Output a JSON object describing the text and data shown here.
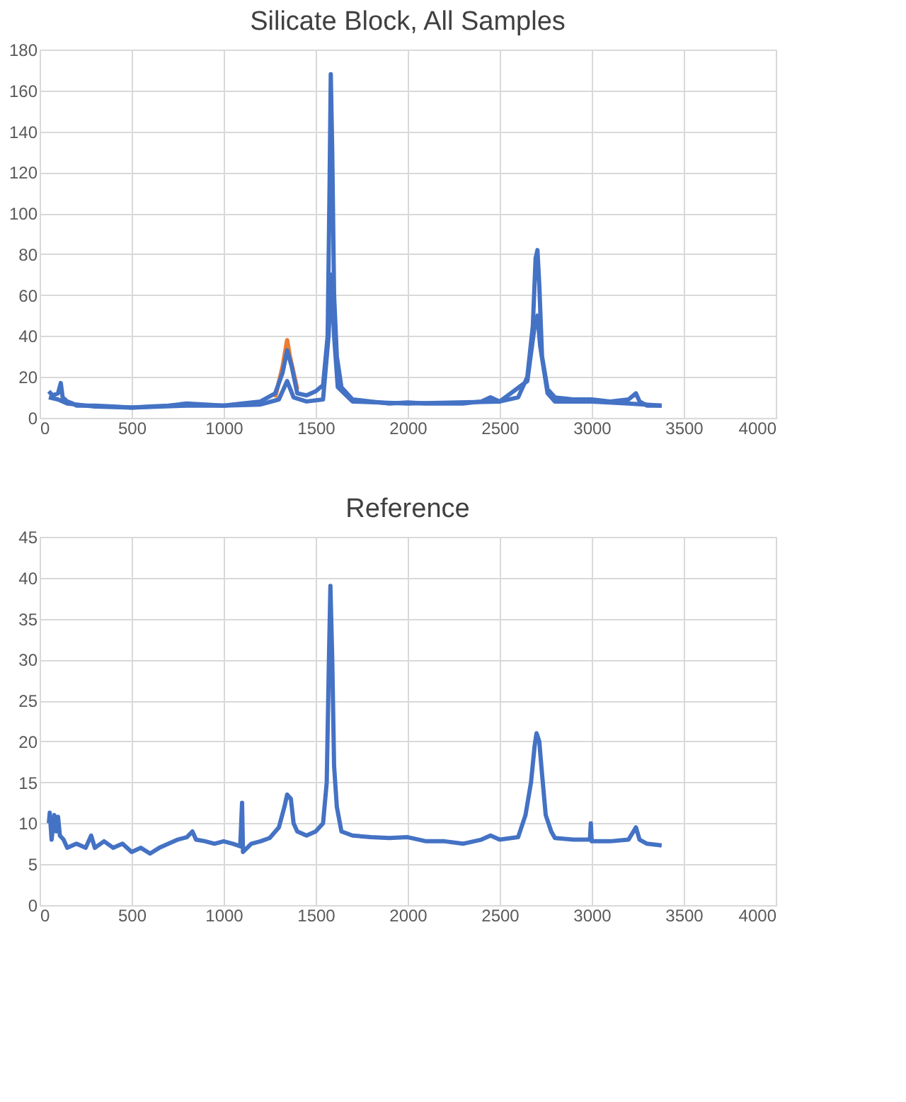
{
  "chart_data": [
    {
      "type": "line",
      "title": "Silicate Block, All Samples",
      "xlim": [
        0,
        4000
      ],
      "xticks": [
        0,
        500,
        1000,
        1500,
        2000,
        2500,
        3000,
        3500,
        4000
      ],
      "ylim": [
        0,
        180
      ],
      "yticks": [
        0,
        20,
        40,
        60,
        80,
        100,
        120,
        140,
        160,
        180
      ],
      "grid": true,
      "legend": false,
      "line_style": "solid",
      "marker": "none",
      "series": [
        {
          "color": "#ed7d31",
          "x": [
            1280,
            1320,
            1345,
            1360,
            1400
          ],
          "values": [
            10,
            25,
            38,
            30,
            14
          ]
        },
        {
          "color": "#4472c4",
          "x": [
            50,
            100,
            150,
            300,
            500,
            800,
            1000,
            1200,
            1300,
            1345,
            1380,
            1450,
            1540,
            1570,
            1585,
            1600,
            1620,
            1700,
            2000,
            2500,
            2650,
            2690,
            2705,
            2720,
            2760,
            2800,
            3000,
            3200,
            3380
          ],
          "values": [
            10,
            9,
            7,
            5.5,
            5,
            6,
            6,
            6.5,
            9,
            18,
            10,
            8,
            9,
            40,
            70,
            40,
            15,
            8,
            7,
            8,
            18,
            45,
            50,
            35,
            12,
            8,
            8,
            7,
            6
          ]
        },
        {
          "color": "#4472c4",
          "x": [
            50,
            70,
            100,
            115,
            125,
            150,
            180,
            200,
            300,
            400,
            500,
            600,
            700,
            800,
            900,
            1000,
            1100,
            1200,
            1280,
            1320,
            1345,
            1370,
            1400,
            1450,
            1500,
            1540,
            1565,
            1575,
            1582,
            1590,
            1600,
            1615,
            1640,
            1700,
            1800,
            1900,
            2000,
            2100,
            2200,
            2300,
            2400,
            2450,
            2500,
            2600,
            2650,
            2680,
            2695,
            2705,
            2715,
            2730,
            2760,
            2800,
            2900,
            3000,
            3100,
            3200,
            3240,
            3260,
            3300,
            3380
          ],
          "values": [
            13,
            11,
            12,
            17,
            10,
            8,
            7,
            6,
            6,
            5.5,
            5,
            5.5,
            6,
            7,
            6.5,
            6,
            7,
            8,
            12,
            22,
            33,
            25,
            12,
            11,
            13,
            16,
            40,
            110,
            168,
            130,
            60,
            30,
            15,
            9,
            8,
            7,
            7.5,
            7,
            7,
            7,
            8,
            10,
            8,
            10,
            20,
            45,
            78,
            82,
            65,
            30,
            14,
            10,
            9,
            9,
            8,
            9,
            12,
            8,
            6,
            6
          ]
        }
      ]
    },
    {
      "type": "line",
      "title": "Reference",
      "xlim": [
        0,
        4000
      ],
      "xticks": [
        0,
        500,
        1000,
        1500,
        2000,
        2500,
        3000,
        3500,
        4000
      ],
      "ylim": [
        0,
        45
      ],
      "yticks": [
        0,
        5,
        10,
        15,
        20,
        25,
        30,
        35,
        40,
        45
      ],
      "grid": true,
      "legend": false,
      "line_style": "solid",
      "marker": "none",
      "series": [
        {
          "color": "#4472c4",
          "x": [
            50,
            55,
            65,
            80,
            90,
            100,
            110,
            130,
            150,
            200,
            250,
            280,
            300,
            350,
            400,
            450,
            500,
            550,
            600,
            650,
            700,
            750,
            800,
            830,
            850,
            900,
            950,
            1000,
            1050,
            1090,
            1100,
            1105,
            1150,
            1200,
            1250,
            1300,
            1330,
            1345,
            1365,
            1380,
            1400,
            1450,
            1500,
            1540,
            1560,
            1572,
            1580,
            1590,
            1600,
            1615,
            1640,
            1700,
            1800,
            1900,
            2000,
            2100,
            2200,
            2300,
            2400,
            2450,
            2500,
            2600,
            2640,
            2670,
            2690,
            2700,
            2715,
            2730,
            2750,
            2780,
            2800,
            2900,
            2990,
            2995,
            3000,
            3100,
            3200,
            3240,
            3260,
            3300,
            3380
          ],
          "values": [
            10,
            11.3,
            8,
            11,
            9,
            10.8,
            8.5,
            8,
            7,
            7.5,
            7,
            8.5,
            7,
            7.8,
            7,
            7.5,
            6.5,
            7,
            6.3,
            7,
            7.5,
            8,
            8.3,
            9,
            8,
            7.8,
            7.5,
            7.8,
            7.5,
            7.2,
            12.5,
            6.5,
            7.5,
            7.8,
            8.2,
            9.5,
            12,
            13.5,
            13,
            10,
            9,
            8.5,
            9,
            10,
            15,
            30,
            39,
            30,
            17,
            12,
            9,
            8.5,
            8.3,
            8.2,
            8.3,
            7.8,
            7.8,
            7.5,
            8,
            8.5,
            8,
            8.3,
            11,
            15,
            19.5,
            21,
            20,
            16,
            11,
            9,
            8.2,
            8,
            8,
            10,
            7.8,
            7.8,
            8,
            9.5,
            8,
            7.5,
            7.3
          ]
        }
      ]
    }
  ]
}
